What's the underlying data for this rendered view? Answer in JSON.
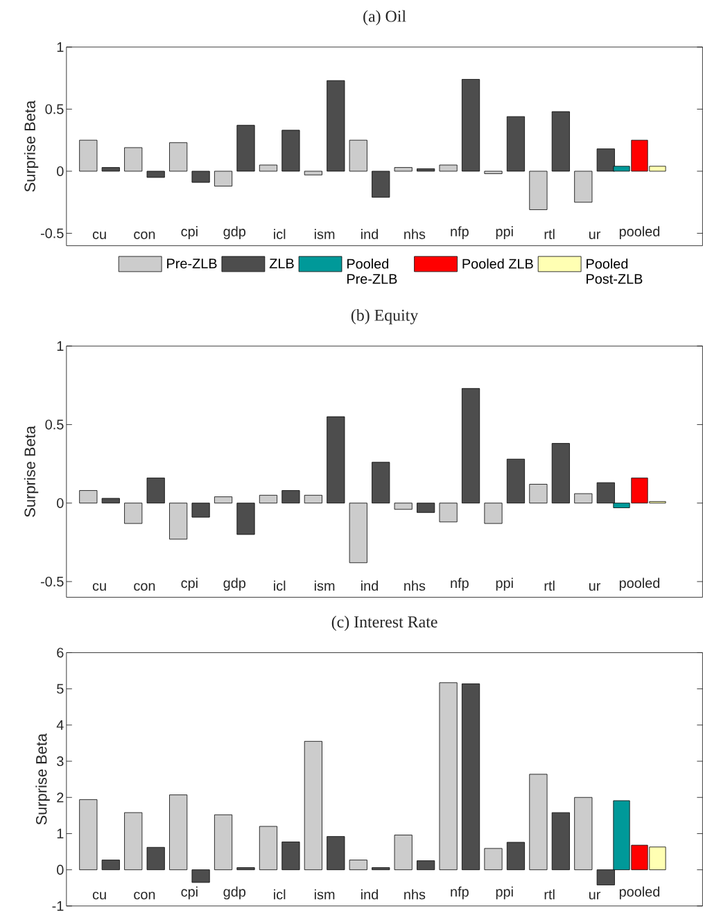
{
  "chart_data": [
    {
      "type": "bar",
      "title": "(a) Oil",
      "ylabel": "Surprise Beta",
      "categories": [
        "cu",
        "con",
        "cpi",
        "gdp",
        "icl",
        "ism",
        "ind",
        "nhs",
        "nfp",
        "ppi",
        "rtl",
        "ur",
        "pooled"
      ],
      "ylim": [
        -0.6,
        1
      ],
      "yticks": [
        -0.5,
        0,
        0.5,
        1
      ],
      "legend": "bottom",
      "series": [
        {
          "name": "Pre-ZLB",
          "color": "#cccccc",
          "values": [
            0.25,
            0.19,
            0.23,
            -0.12,
            0.05,
            -0.03,
            0.25,
            0.03,
            0.05,
            -0.02,
            -0.31,
            -0.25,
            null
          ]
        },
        {
          "name": "ZLB",
          "color": "#4d4d4d",
          "values": [
            0.03,
            -0.05,
            -0.09,
            0.37,
            0.33,
            0.73,
            -0.21,
            0.02,
            0.74,
            0.44,
            0.48,
            0.18,
            null
          ]
        },
        {
          "name": "Pooled Pre-ZLB",
          "color": "#009999",
          "values": [
            null,
            null,
            null,
            null,
            null,
            null,
            null,
            null,
            null,
            null,
            null,
            null,
            0.04
          ]
        },
        {
          "name": "Pooled ZLB",
          "color": "#ff0000",
          "values": [
            null,
            null,
            null,
            null,
            null,
            null,
            null,
            null,
            null,
            null,
            null,
            null,
            0.25
          ]
        },
        {
          "name": "Pooled Post-ZLB",
          "color": "#ffffb3",
          "values": [
            null,
            null,
            null,
            null,
            null,
            null,
            null,
            null,
            null,
            null,
            null,
            null,
            0.04
          ]
        }
      ]
    },
    {
      "type": "bar",
      "title": "(b) Equity",
      "ylabel": "Surprise Beta",
      "categories": [
        "cu",
        "con",
        "cpi",
        "gdp",
        "icl",
        "ism",
        "ind",
        "nhs",
        "nfp",
        "ppi",
        "rtl",
        "ur",
        "pooled"
      ],
      "ylim": [
        -0.6,
        1
      ],
      "yticks": [
        -0.5,
        0,
        0.5,
        1
      ],
      "series": [
        {
          "color": "#cccccc",
          "values": [
            0.08,
            -0.13,
            -0.23,
            0.04,
            0.05,
            0.05,
            -0.38,
            -0.04,
            -0.12,
            -0.13,
            0.12,
            0.06,
            null
          ]
        },
        {
          "color": "#4d4d4d",
          "values": [
            0.03,
            0.16,
            -0.09,
            -0.2,
            0.08,
            0.55,
            0.26,
            -0.06,
            0.73,
            0.28,
            0.38,
            0.13,
            null
          ]
        },
        {
          "color": "#009999",
          "values": [
            null,
            null,
            null,
            null,
            null,
            null,
            null,
            null,
            null,
            null,
            null,
            null,
            -0.03
          ]
        },
        {
          "color": "#ff0000",
          "values": [
            null,
            null,
            null,
            null,
            null,
            null,
            null,
            null,
            null,
            null,
            null,
            null,
            0.16
          ]
        },
        {
          "color": "#ffffb3",
          "values": [
            null,
            null,
            null,
            null,
            null,
            null,
            null,
            null,
            null,
            null,
            null,
            null,
            0.01
          ]
        }
      ]
    },
    {
      "type": "bar",
      "title": "(c) Interest Rate",
      "ylabel": "Surprise Beta",
      "categories": [
        "cu",
        "con",
        "cpi",
        "gdp",
        "icl",
        "ism",
        "ind",
        "nhs",
        "nfp",
        "ppi",
        "rtl",
        "ur",
        "pooled"
      ],
      "ylim": [
        -1,
        6
      ],
      "yticks": [
        -1,
        0,
        1,
        2,
        3,
        4,
        5,
        6
      ],
      "series": [
        {
          "color": "#cccccc",
          "values": [
            1.94,
            1.58,
            2.07,
            1.52,
            1.2,
            3.55,
            0.27,
            0.96,
            5.17,
            0.59,
            2.64,
            2.0,
            null
          ]
        },
        {
          "color": "#4d4d4d",
          "values": [
            0.27,
            0.62,
            -0.35,
            0.06,
            0.77,
            0.92,
            0.06,
            0.25,
            5.14,
            0.76,
            1.58,
            -0.42,
            null
          ]
        },
        {
          "color": "#009999",
          "values": [
            null,
            null,
            null,
            null,
            null,
            null,
            null,
            null,
            null,
            null,
            null,
            null,
            1.91
          ]
        },
        {
          "color": "#ff0000",
          "values": [
            null,
            null,
            null,
            null,
            null,
            null,
            null,
            null,
            null,
            null,
            null,
            null,
            0.68
          ]
        },
        {
          "color": "#ffffb3",
          "values": [
            null,
            null,
            null,
            null,
            null,
            null,
            null,
            null,
            null,
            null,
            null,
            null,
            0.63
          ]
        }
      ]
    }
  ]
}
